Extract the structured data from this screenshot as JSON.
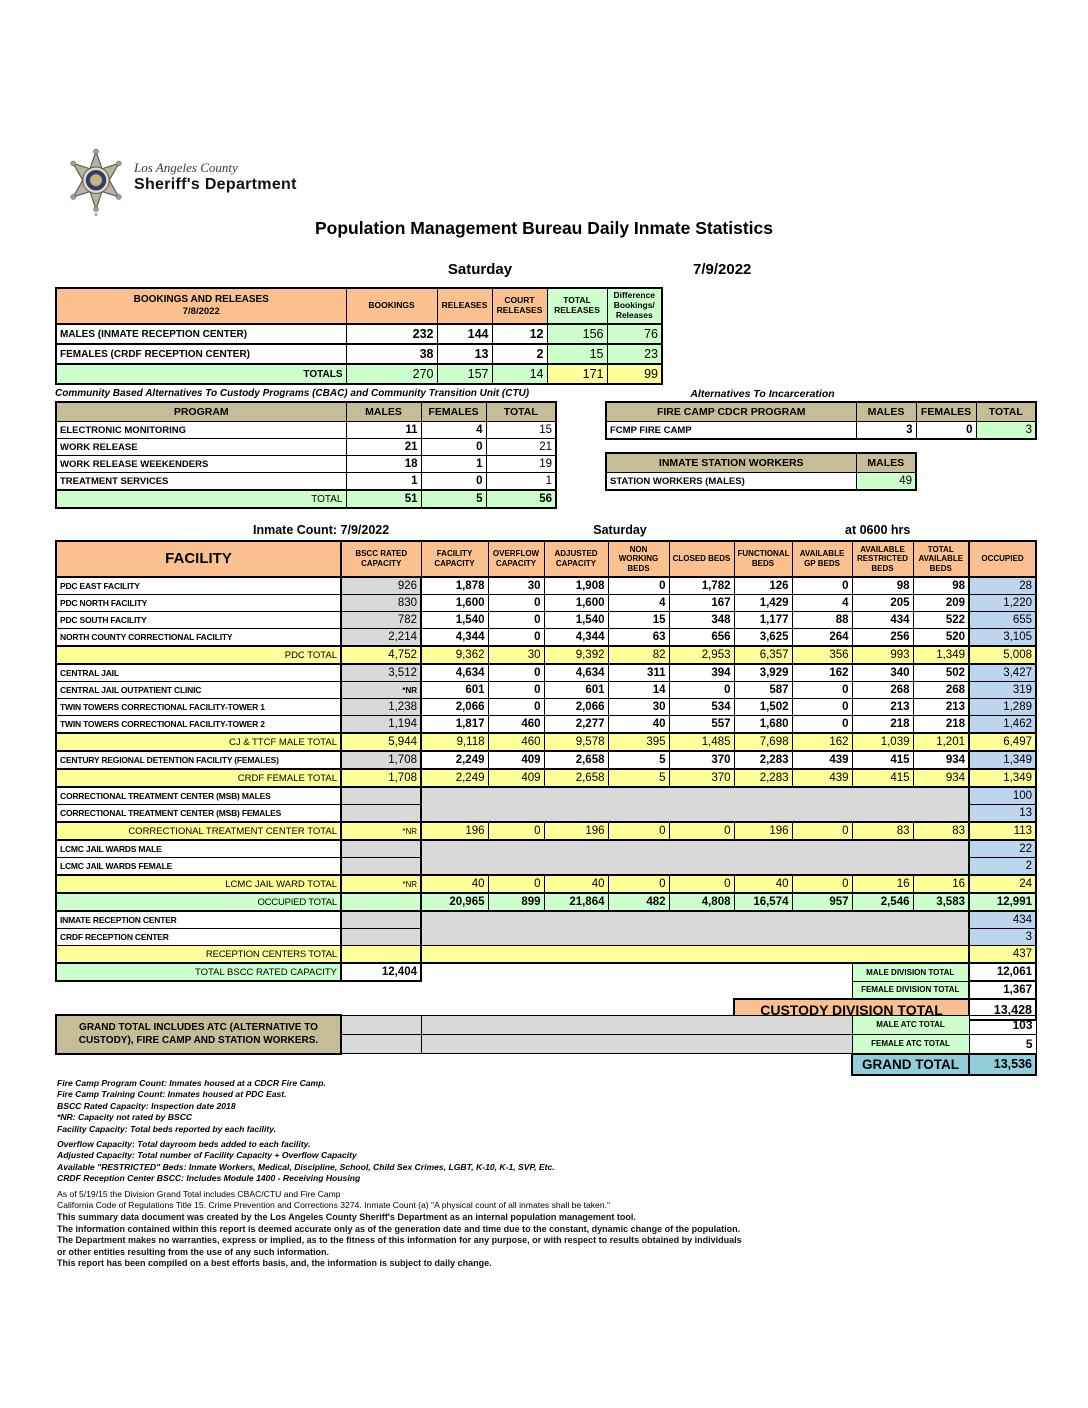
{
  "letterhead": {
    "county": "Los Angeles County",
    "department": "Sheriff's Department"
  },
  "title": "Population Management Bureau Daily Inmate Statistics",
  "dateline": {
    "day": "Saturday",
    "date": "7/9/2022"
  },
  "bookings": {
    "title": "BOOKINGS AND RELEASES",
    "date": "7/8/2022",
    "columns": [
      "BOOKINGS",
      "RELEASES",
      "COURT RELEASES",
      "TOTAL RELEASES",
      "Difference Bookings/ Releases"
    ],
    "rows": [
      {
        "label": "MALES (INMATE RECEPTION CENTER)",
        "values": [
          "232",
          "144",
          "12",
          "156",
          "76"
        ]
      },
      {
        "label": "FEMALES (CRDF RECEPTION CENTER)",
        "values": [
          "38",
          "13",
          "2",
          "15",
          "23"
        ]
      }
    ],
    "totals": {
      "label": "TOTALS",
      "values": [
        "270",
        "157",
        "14",
        "171",
        "99"
      ]
    }
  },
  "cbac": {
    "title": "Community Based Alternatives To Custody Programs (CBAC) and Community Transition Unit (CTU)",
    "columns": [
      "PROGRAM",
      "MALES",
      "FEMALES",
      "TOTAL"
    ],
    "rows": [
      {
        "label": "ELECTRONIC MONITORING",
        "values": [
          "11",
          "4",
          "15"
        ]
      },
      {
        "label": "WORK RELEASE",
        "values": [
          "21",
          "0",
          "21"
        ]
      },
      {
        "label": "WORK RELEASE WEEKENDERS",
        "values": [
          "18",
          "1",
          "19"
        ]
      },
      {
        "label": "TREATMENT SERVICES",
        "values": [
          "1",
          "0",
          "1"
        ]
      }
    ],
    "totals": {
      "label": "TOTAL",
      "values": [
        "51",
        "5",
        "56"
      ]
    }
  },
  "alternatives": {
    "title": "Alternatives To Incarceration",
    "fire_camp": {
      "header": "FIRE CAMP CDCR PROGRAM",
      "columns": [
        "MALES",
        "FEMALES",
        "TOTAL"
      ],
      "row": {
        "label": "FCMP FIRE CAMP",
        "values": [
          "3",
          "0",
          "3"
        ]
      }
    },
    "station_workers": {
      "header": "INMATE STATION WORKERS",
      "column": "MALES",
      "row": {
        "label": "STATION WORKERS (MALES)",
        "value": "49"
      }
    }
  },
  "count_line": {
    "label": "Inmate Count:",
    "date": "7/9/2022",
    "day": "Saturday",
    "time": "at 0600 hrs"
  },
  "facility_table": {
    "columns": [
      "FACILITY",
      "BSCC RATED CAPACITY",
      "FACILITY CAPACITY",
      "OVERFLOW CAPACITY",
      "ADJUSTED CAPACITY",
      "NON WORKING BEDS",
      "CLOSED BEDS",
      "FUNCTIONAL BEDS",
      "AVAILABLE GP BEDS",
      "AVAILABLE RESTRICTED BEDS",
      "TOTAL AVAILABLE BEDS",
      "OCCUPIED"
    ],
    "rows": [
      {
        "type": "data",
        "label": "PDC EAST FACILITY",
        "bscc": "926",
        "values": [
          "1,878",
          "30",
          "1,908",
          "0",
          "1,782",
          "126",
          "0",
          "98",
          "98"
        ],
        "occupied": "28"
      },
      {
        "type": "data",
        "label": "PDC NORTH FACILITY",
        "bscc": "830",
        "values": [
          "1,600",
          "0",
          "1,600",
          "4",
          "167",
          "1,429",
          "4",
          "205",
          "209"
        ],
        "occupied": "1,220"
      },
      {
        "type": "data",
        "label": "PDC SOUTH FACILITY",
        "bscc": "782",
        "values": [
          "1,540",
          "0",
          "1,540",
          "15",
          "348",
          "1,177",
          "88",
          "434",
          "522"
        ],
        "occupied": "655"
      },
      {
        "type": "data",
        "label": "NORTH COUNTY CORRECTIONAL FACILITY",
        "bscc": "2,214",
        "values": [
          "4,344",
          "0",
          "4,344",
          "63",
          "656",
          "3,625",
          "264",
          "256",
          "520"
        ],
        "occupied": "3,105"
      },
      {
        "type": "total",
        "label": "PDC TOTAL",
        "bscc": "4,752",
        "values": [
          "9,362",
          "30",
          "9,392",
          "82",
          "2,953",
          "6,357",
          "356",
          "993",
          "1,349"
        ],
        "occupied": "5,008"
      },
      {
        "type": "data",
        "label": "CENTRAL JAIL",
        "bscc": "3,512",
        "values": [
          "4,634",
          "0",
          "4,634",
          "311",
          "394",
          "3,929",
          "162",
          "340",
          "502"
        ],
        "occupied": "3,427"
      },
      {
        "type": "data",
        "label": "CENTRAL JAIL OUTPATIENT CLINIC",
        "bscc": "*NR",
        "values": [
          "601",
          "0",
          "601",
          "14",
          "0",
          "587",
          "0",
          "268",
          "268"
        ],
        "occupied": "319"
      },
      {
        "type": "data",
        "label": "TWIN TOWERS CORRECTIONAL FACILITY-TOWER 1",
        "bscc": "1,238",
        "values": [
          "2,066",
          "0",
          "2,066",
          "30",
          "534",
          "1,502",
          "0",
          "213",
          "213"
        ],
        "occupied": "1,289"
      },
      {
        "type": "data",
        "label": "TWIN TOWERS CORRECTIONAL FACILITY-TOWER 2",
        "bscc": "1,194",
        "values": [
          "1,817",
          "460",
          "2,277",
          "40",
          "557",
          "1,680",
          "0",
          "218",
          "218"
        ],
        "occupied": "1,462"
      },
      {
        "type": "total",
        "label": "CJ & TTCF MALE TOTAL",
        "bscc": "5,944",
        "values": [
          "9,118",
          "460",
          "9,578",
          "395",
          "1,485",
          "7,698",
          "162",
          "1,039",
          "1,201"
        ],
        "occupied": "6,497"
      },
      {
        "type": "data",
        "label": "CENTURY REGIONAL DETENTION FACILITY (FEMALES)",
        "bscc": "1,708",
        "values": [
          "2,249",
          "409",
          "2,658",
          "5",
          "370",
          "2,283",
          "439",
          "415",
          "934"
        ],
        "occupied": "1,349"
      },
      {
        "type": "total",
        "label": "CRDF FEMALE TOTAL",
        "bscc": "1,708",
        "values": [
          "2,249",
          "409",
          "2,658",
          "5",
          "370",
          "2,283",
          "439",
          "415",
          "934"
        ],
        "occupied": "1,349"
      },
      {
        "type": "pair",
        "rows": [
          {
            "label": "CORRECTIONAL TREATMENT CENTER (MSB) MALES",
            "occupied": "100"
          },
          {
            "label": "CORRECTIONAL TREATMENT CENTER (MSB) FEMALES",
            "occupied": "13"
          }
        ]
      },
      {
        "type": "total",
        "label": "CORRECTIONAL TREATMENT CENTER TOTAL",
        "bscc": "*NR",
        "values": [
          "196",
          "0",
          "196",
          "0",
          "0",
          "196",
          "0",
          "83",
          "83"
        ],
        "occupied": "113"
      },
      {
        "type": "pair",
        "rows": [
          {
            "label": "LCMC JAIL WARDS MALE",
            "occupied": "22"
          },
          {
            "label": "LCMC JAIL WARDS FEMALE",
            "occupied": "2"
          }
        ]
      },
      {
        "type": "total",
        "label": "LCMC JAIL WARD TOTAL",
        "bscc": "*NR",
        "values": [
          "40",
          "0",
          "40",
          "0",
          "0",
          "40",
          "0",
          "16",
          "16"
        ],
        "occupied": "24"
      },
      {
        "type": "green",
        "label": "OCCUPIED TOTAL",
        "bscc": "",
        "values": [
          "20,965",
          "899",
          "21,864",
          "482",
          "4,808",
          "16,574",
          "957",
          "2,546",
          "3,583"
        ],
        "occupied": "12,991"
      },
      {
        "type": "pair",
        "rows": [
          {
            "label": "INMATE RECEPTION CENTER",
            "occupied": "434"
          },
          {
            "label": "CRDF RECEPTION CENTER",
            "occupied": "3"
          }
        ]
      },
      {
        "type": "reception_total",
        "label": "RECEPTION CENTERS TOTAL",
        "occupied": "437"
      }
    ]
  },
  "division_totals": {
    "bscc_label": "TOTAL BSCC RATED CAPACITY",
    "bscc_value": "12,404",
    "male_label": "MALE DIVISION TOTAL",
    "male_value": "12,061",
    "female_label": "FEMALE DIVISION TOTAL",
    "female_value": "1,367",
    "custody_label": "CUSTODY DIVISION TOTAL",
    "custody_value": "13,428"
  },
  "grand_total": {
    "note_line1": "GRAND TOTAL INCLUDES ATC (ALTERNATIVE TO",
    "note_line2": "CUSTODY), FIRE CAMP AND STATION WORKERS.",
    "male_atc_label": "MALE ATC TOTAL",
    "male_atc_value": "103",
    "female_atc_label": "FEMALE ATC TOTAL",
    "female_atc_value": "5",
    "label": "GRAND TOTAL",
    "value": "13,536"
  },
  "footnotes": {
    "italic": [
      "Fire Camp Program Count: Inmates housed at a CDCR Fire Camp.",
      "Fire Camp Training Count: Inmates housed at PDC East.",
      "BSCC Rated Capacity: Inspection date 2018",
      "*NR: Capacity not rated by BSCC",
      "Facility Capacity: Total beds reported by each facility.",
      "Overflow Capacity: Total dayroom beds added to each facility.",
      "Adjusted Capacity: Total number of Facility Capacity + Overflow Capacity",
      "Available \"RESTRICTED\" Beds: Inmate Workers, Medical, Discipline, School, Child Sex Crimes,  LGBT, K-10, K-1, SVP, Etc.",
      "CRDF Reception Center BSCC: Includes Module 1400 - Receiving Housing"
    ],
    "plain": [
      "As of 5/19/15 the Division Grand Total includes CBAC/CTU and Fire Camp",
      "California Code of Regulations Title 15. Crime Prevention and Corrections 3274. Inmate Count (a) \"A physical count of all inmates shall be taken.\""
    ]
  },
  "disclaimer": [
    "This summary data document was created by the Los Angeles County Sheriff's Department as an internal population management tool.",
    "The information contained within this report is deemed accurate only as of the generation date and time due to the constant, dynamic change of the population.",
    "The Department makes no warranties, express or implied, as to the fitness of this information for any purpose, or with respect to results obtained by individuals",
    "or other entities resulting from the use of any such information.",
    "This report has been compiled on a best efforts basis, and, the information is subject to daily change."
  ]
}
